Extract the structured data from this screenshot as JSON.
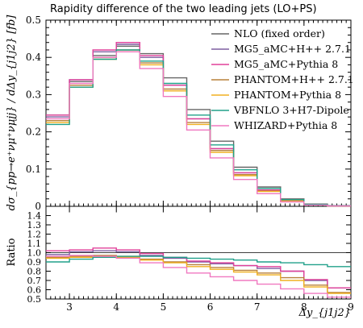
{
  "chart_data": {
    "type": "step-histogram",
    "title": "Rapidity difference of the two leading jets (LO+PS)",
    "xlabel": "Δy_{j1j2}",
    "ylabel": "dσ_{pp→e⁺νμ⁺νμjj} / dΔy_{j1j2} [fb]",
    "ratio_ylabel": "Ratio",
    "xlim": [
      2.5,
      9.0
    ],
    "ylim": [
      0,
      0.5
    ],
    "ratio_ylim": [
      0.5,
      1.5
    ],
    "x_ticks": [
      "3",
      "4",
      "5",
      "6",
      "7",
      "8",
      "9"
    ],
    "y_ticks": [
      "0",
      "0.1",
      "0.2",
      "0.3",
      "0.4",
      "0.5"
    ],
    "ratio_ticks": [
      "0.5",
      "0.6",
      "0.7",
      "0.8",
      "0.9",
      "1.0",
      "1.1",
      "1.2",
      "1.3",
      "1.4"
    ],
    "bin_edges": [
      2.5,
      3.0,
      3.5,
      4.0,
      4.5,
      5.0,
      5.5,
      6.0,
      6.5,
      7.0,
      7.5,
      8.0,
      8.5,
      9.0
    ],
    "legend_position": "top-right",
    "series": [
      {
        "name": "NLO (fixed order)",
        "color": "#666666",
        "values": [
          0.245,
          0.335,
          0.405,
          0.43,
          0.41,
          0.345,
          0.26,
          0.175,
          0.105,
          0.052,
          0.02,
          0.006,
          0.002
        ],
        "ratio": [
          1.0,
          1.0,
          1.0,
          1.0,
          1.0,
          1.0,
          1.0,
          1.0,
          1.0,
          1.0,
          1.0,
          1.0,
          1.0
        ]
      },
      {
        "name": "MG5_aMC+H++ 2.7.1",
        "color": "#7f5fa0",
        "values": [
          0.24,
          0.34,
          0.415,
          0.435,
          0.4,
          0.325,
          0.235,
          0.155,
          0.09,
          0.043,
          0.016,
          0.005,
          0.0015
        ],
        "ratio": [
          0.98,
          1.01,
          1.02,
          1.01,
          0.97,
          0.94,
          0.9,
          0.88,
          0.86,
          0.83,
          0.8,
          0.7,
          0.62
        ]
      },
      {
        "name": "MG5_aMC+Pythia 8",
        "color": "#e0409a",
        "values": [
          0.245,
          0.34,
          0.42,
          0.44,
          0.405,
          0.325,
          0.235,
          0.155,
          0.09,
          0.044,
          0.016,
          0.005,
          0.0015
        ],
        "ratio": [
          1.02,
          1.03,
          1.05,
          1.03,
          0.99,
          0.95,
          0.91,
          0.89,
          0.86,
          0.85,
          0.8,
          0.71,
          0.62
        ]
      },
      {
        "name": "PHANTOM+H++ 2.7.1",
        "color": "#b8803a",
        "values": [
          0.23,
          0.325,
          0.4,
          0.42,
          0.385,
          0.315,
          0.225,
          0.15,
          0.085,
          0.041,
          0.015,
          0.004,
          0.0012
        ],
        "ratio": [
          0.95,
          0.96,
          0.97,
          0.96,
          0.93,
          0.9,
          0.87,
          0.84,
          0.81,
          0.78,
          0.73,
          0.65,
          0.57
        ]
      },
      {
        "name": "PHANTOM+Pythia 8",
        "color": "#f0b020",
        "values": [
          0.225,
          0.32,
          0.395,
          0.415,
          0.38,
          0.31,
          0.22,
          0.145,
          0.082,
          0.04,
          0.014,
          0.004,
          0.0012
        ],
        "ratio": [
          0.94,
          0.95,
          0.96,
          0.95,
          0.92,
          0.89,
          0.85,
          0.82,
          0.79,
          0.76,
          0.7,
          0.63,
          0.56
        ]
      },
      {
        "name": "VBFNLO 3+H7-Dipole",
        "color": "#20a08a",
        "values": [
          0.22,
          0.32,
          0.395,
          0.42,
          0.39,
          0.33,
          0.245,
          0.165,
          0.098,
          0.048,
          0.018,
          0.005,
          0.0017
        ],
        "ratio": [
          0.9,
          0.93,
          0.95,
          0.96,
          0.96,
          0.95,
          0.94,
          0.93,
          0.92,
          0.9,
          0.89,
          0.87,
          0.85
        ]
      },
      {
        "name": "WHIZARD+Pythia 8",
        "color": "#f078c0",
        "values": [
          0.235,
          0.33,
          0.4,
          0.415,
          0.37,
          0.295,
          0.205,
          0.13,
          0.072,
          0.034,
          0.012,
          0.0035,
          0.001
        ],
        "ratio": [
          0.96,
          0.97,
          0.96,
          0.94,
          0.89,
          0.84,
          0.78,
          0.74,
          0.7,
          0.66,
          0.61,
          0.56,
          0.52
        ]
      }
    ]
  }
}
